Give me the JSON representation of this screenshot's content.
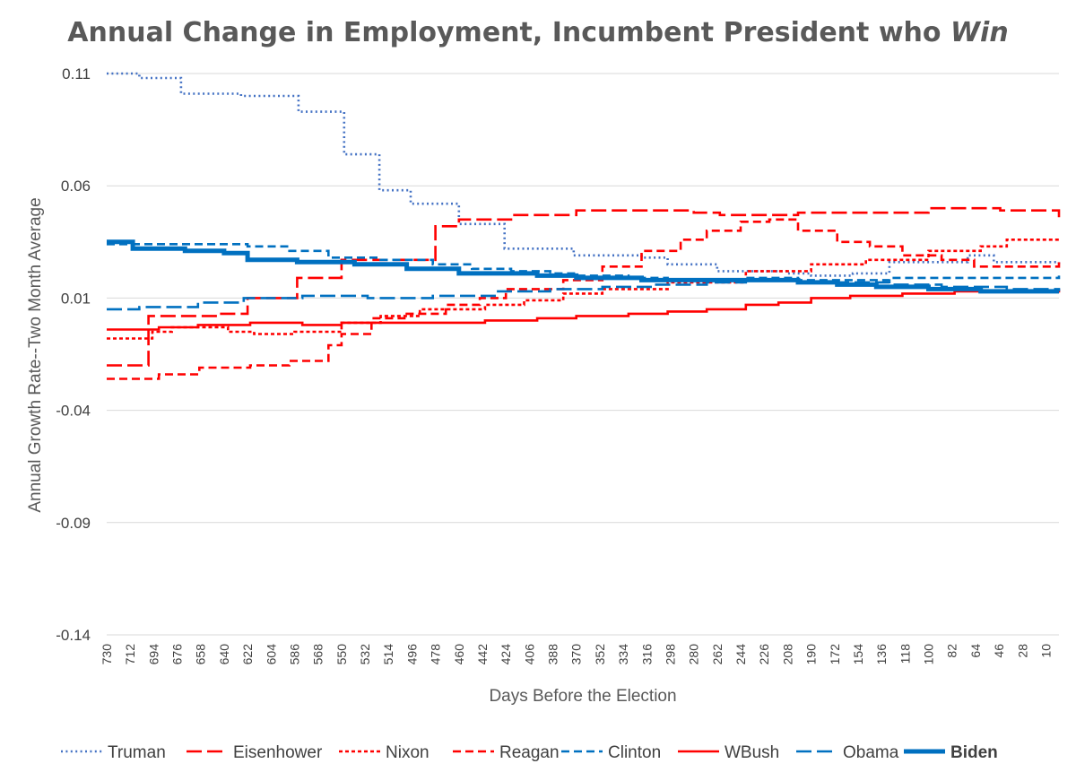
{
  "chart_data": {
    "type": "line",
    "step": true,
    "title_prefix": "Annual Change in Employment, Incumbent President who ",
    "title_emphasis": "Win",
    "xlabel": "Days Before the Election",
    "ylabel": "Annual Growth Rate--Two Month Average",
    "ylim": [
      -0.14,
      0.11
    ],
    "yticks": [
      "0.11",
      "0.06",
      "0.01",
      "-0.04",
      "-0.09",
      "-0.14"
    ],
    "ytick_values": [
      0.11,
      0.06,
      0.01,
      -0.04,
      -0.09,
      -0.14
    ],
    "xlim": [
      730,
      0
    ],
    "xticks": [
      "730",
      "712",
      "694",
      "676",
      "658",
      "640",
      "622",
      "604",
      "586",
      "568",
      "550",
      "532",
      "514",
      "496",
      "478",
      "460",
      "442",
      "424",
      "406",
      "388",
      "370",
      "352",
      "334",
      "316",
      "298",
      "280",
      "262",
      "244",
      "226",
      "208",
      "190",
      "172",
      "154",
      "136",
      "118",
      "100",
      "82",
      "64",
      "46",
      "28",
      "10"
    ],
    "grid": true,
    "legend_position": "bottom",
    "series": [
      {
        "name": "Truman",
        "color": "#4472c4",
        "style": "dotted",
        "bold": false,
        "points": [
          [
            730,
            0.11
          ],
          [
            705,
            0.108
          ],
          [
            673,
            0.101
          ],
          [
            627,
            0.1
          ],
          [
            583,
            0.093
          ],
          [
            548,
            0.074
          ],
          [
            521,
            0.058
          ],
          [
            497,
            0.052
          ],
          [
            460,
            0.043
          ],
          [
            425,
            0.032
          ],
          [
            372,
            0.029
          ],
          [
            320,
            0.028
          ],
          [
            300,
            0.025
          ],
          [
            275,
            0.025
          ],
          [
            262,
            0.022
          ],
          [
            230,
            0.022
          ],
          [
            208,
            0.021
          ],
          [
            190,
            0.02
          ],
          [
            158,
            0.021
          ],
          [
            130,
            0.026
          ],
          [
            70,
            0.029
          ],
          [
            50,
            0.026
          ],
          [
            0,
            0.024
          ]
        ]
      },
      {
        "name": "Eisenhower",
        "color": "#ff0000",
        "style": "longdash",
        "bold": false,
        "points": [
          [
            730,
            -0.02
          ],
          [
            698,
            0.002
          ],
          [
            644,
            0.003
          ],
          [
            622,
            0.01
          ],
          [
            584,
            0.019
          ],
          [
            550,
            0.027
          ],
          [
            478,
            0.042
          ],
          [
            460,
            0.045
          ],
          [
            420,
            0.047
          ],
          [
            370,
            0.049
          ],
          [
            280,
            0.048
          ],
          [
            260,
            0.047
          ],
          [
            200,
            0.048
          ],
          [
            100,
            0.05
          ],
          [
            45,
            0.049
          ],
          [
            0,
            0.046
          ]
        ]
      },
      {
        "name": "Nixon",
        "color": "#ff0000",
        "style": "shortdash",
        "bold": false,
        "points": [
          [
            730,
            -0.008
          ],
          [
            695,
            -0.005
          ],
          [
            680,
            -0.003
          ],
          [
            637,
            -0.005
          ],
          [
            617,
            -0.006
          ],
          [
            586,
            -0.005
          ],
          [
            560,
            -0.005
          ],
          [
            550,
            -0.001
          ],
          [
            520,
            0.002
          ],
          [
            490,
            0.005
          ],
          [
            440,
            0.007
          ],
          [
            410,
            0.009
          ],
          [
            380,
            0.012
          ],
          [
            350,
            0.014
          ],
          [
            300,
            0.017
          ],
          [
            240,
            0.022
          ],
          [
            190,
            0.025
          ],
          [
            148,
            0.027
          ],
          [
            100,
            0.031
          ],
          [
            60,
            0.033
          ],
          [
            40,
            0.036
          ],
          [
            0,
            0.037
          ]
        ]
      },
      {
        "name": "Reagan",
        "color": "#ff0000",
        "style": "dash",
        "bold": false,
        "points": [
          [
            730,
            -0.026
          ],
          [
            690,
            -0.024
          ],
          [
            659,
            -0.021
          ],
          [
            620,
            -0.02
          ],
          [
            590,
            -0.018
          ],
          [
            560,
            -0.011
          ],
          [
            550,
            -0.006
          ],
          [
            527,
            0.001
          ],
          [
            500,
            0.003
          ],
          [
            470,
            0.007
          ],
          [
            444,
            0.01
          ],
          [
            424,
            0.014
          ],
          [
            380,
            0.018
          ],
          [
            350,
            0.024
          ],
          [
            320,
            0.031
          ],
          [
            290,
            0.036
          ],
          [
            270,
            0.04
          ],
          [
            244,
            0.044
          ],
          [
            222,
            0.045
          ],
          [
            200,
            0.04
          ],
          [
            170,
            0.035
          ],
          [
            145,
            0.033
          ],
          [
            120,
            0.029
          ],
          [
            90,
            0.027
          ],
          [
            65,
            0.024
          ],
          [
            35,
            0.024
          ],
          [
            0,
            0.027
          ]
        ]
      },
      {
        "name": "Clinton",
        "color": "#0070c0",
        "style": "dash",
        "bold": false,
        "points": [
          [
            730,
            0.034
          ],
          [
            622,
            0.033
          ],
          [
            590,
            0.031
          ],
          [
            560,
            0.028
          ],
          [
            520,
            0.027
          ],
          [
            480,
            0.025
          ],
          [
            450,
            0.023
          ],
          [
            420,
            0.022
          ],
          [
            390,
            0.021
          ],
          [
            370,
            0.02
          ],
          [
            330,
            0.019
          ],
          [
            300,
            0.018
          ],
          [
            270,
            0.018
          ],
          [
            240,
            0.019
          ],
          [
            200,
            0.018
          ],
          [
            160,
            0.018
          ],
          [
            130,
            0.019
          ],
          [
            60,
            0.019
          ],
          [
            0,
            0.02
          ]
        ]
      },
      {
        "name": "WBush",
        "color": "#ff0000",
        "style": "solid",
        "bold": false,
        "points": [
          [
            730,
            -0.004
          ],
          [
            690,
            -0.003
          ],
          [
            660,
            -0.002
          ],
          [
            620,
            -0.001
          ],
          [
            580,
            -0.002
          ],
          [
            550,
            -0.001
          ],
          [
            500,
            -0.001
          ],
          [
            440,
            0.0
          ],
          [
            400,
            0.001
          ],
          [
            370,
            0.002
          ],
          [
            330,
            0.003
          ],
          [
            300,
            0.004
          ],
          [
            270,
            0.005
          ],
          [
            240,
            0.007
          ],
          [
            215,
            0.008
          ],
          [
            190,
            0.01
          ],
          [
            160,
            0.011
          ],
          [
            120,
            0.012
          ],
          [
            80,
            0.013
          ],
          [
            40,
            0.013
          ],
          [
            0,
            0.014
          ]
        ]
      },
      {
        "name": "Obama",
        "color": "#0070c0",
        "style": "longdash",
        "bold": false,
        "points": [
          [
            730,
            0.005
          ],
          [
            705,
            0.006
          ],
          [
            660,
            0.008
          ],
          [
            625,
            0.01
          ],
          [
            580,
            0.011
          ],
          [
            530,
            0.01
          ],
          [
            480,
            0.011
          ],
          [
            430,
            0.013
          ],
          [
            390,
            0.014
          ],
          [
            350,
            0.015
          ],
          [
            310,
            0.016
          ],
          [
            270,
            0.017
          ],
          [
            240,
            0.018
          ],
          [
            200,
            0.017
          ],
          [
            170,
            0.017
          ],
          [
            130,
            0.016
          ],
          [
            90,
            0.015
          ],
          [
            40,
            0.014
          ],
          [
            0,
            0.013
          ]
        ]
      },
      {
        "name": "Biden",
        "color": "#0070c0",
        "style": "solid",
        "bold": true,
        "points": [
          [
            730,
            0.035
          ],
          [
            710,
            0.032
          ],
          [
            670,
            0.031
          ],
          [
            640,
            0.03
          ],
          [
            622,
            0.027
          ],
          [
            584,
            0.026
          ],
          [
            540,
            0.025
          ],
          [
            500,
            0.023
          ],
          [
            460,
            0.021
          ],
          [
            400,
            0.02
          ],
          [
            370,
            0.019
          ],
          [
            320,
            0.018
          ],
          [
            280,
            0.018
          ],
          [
            240,
            0.018
          ],
          [
            200,
            0.017
          ],
          [
            170,
            0.016
          ],
          [
            140,
            0.015
          ],
          [
            100,
            0.014
          ],
          [
            60,
            0.013
          ],
          [
            20,
            0.013
          ],
          [
            0,
            0.013
          ]
        ]
      }
    ]
  }
}
